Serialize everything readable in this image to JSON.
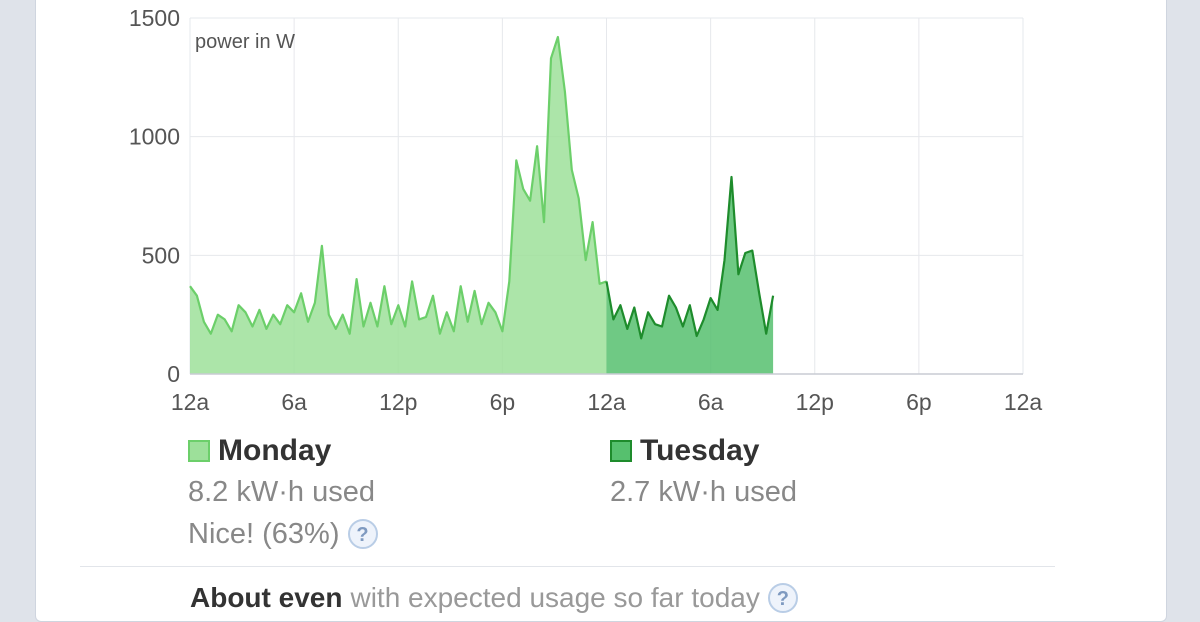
{
  "chart_data": {
    "type": "area",
    "unit_label": "power in W",
    "ylim": [
      0,
      1500
    ],
    "y_ticks": [
      "0",
      "500",
      "1000",
      "1500"
    ],
    "x_ticks": [
      "12a",
      "6a",
      "12p",
      "6p",
      "12a",
      "6a",
      "12p",
      "6p",
      "12a"
    ],
    "x_range_hours": [
      0,
      48
    ],
    "grid": true,
    "series": [
      {
        "name": "Monday",
        "color": "#9de09a",
        "line_color": "#6ccf6a",
        "points": [
          [
            0,
            370
          ],
          [
            0.4,
            330
          ],
          [
            0.8,
            220
          ],
          [
            1.2,
            170
          ],
          [
            1.6,
            250
          ],
          [
            2.0,
            230
          ],
          [
            2.4,
            180
          ],
          [
            2.8,
            290
          ],
          [
            3.2,
            260
          ],
          [
            3.6,
            200
          ],
          [
            4.0,
            270
          ],
          [
            4.4,
            190
          ],
          [
            4.8,
            250
          ],
          [
            5.2,
            210
          ],
          [
            5.6,
            290
          ],
          [
            6.0,
            260
          ],
          [
            6.4,
            340
          ],
          [
            6.8,
            220
          ],
          [
            7.2,
            300
          ],
          [
            7.6,
            540
          ],
          [
            8.0,
            250
          ],
          [
            8.4,
            190
          ],
          [
            8.8,
            250
          ],
          [
            9.2,
            170
          ],
          [
            9.6,
            400
          ],
          [
            10.0,
            200
          ],
          [
            10.4,
            300
          ],
          [
            10.8,
            200
          ],
          [
            11.2,
            370
          ],
          [
            11.6,
            210
          ],
          [
            12.0,
            290
          ],
          [
            12.4,
            200
          ],
          [
            12.8,
            390
          ],
          [
            13.2,
            230
          ],
          [
            13.6,
            240
          ],
          [
            14.0,
            330
          ],
          [
            14.4,
            170
          ],
          [
            14.8,
            260
          ],
          [
            15.2,
            180
          ],
          [
            15.6,
            370
          ],
          [
            16.0,
            220
          ],
          [
            16.4,
            350
          ],
          [
            16.8,
            210
          ],
          [
            17.2,
            300
          ],
          [
            17.6,
            260
          ],
          [
            18.0,
            180
          ],
          [
            18.4,
            390
          ],
          [
            18.8,
            900
          ],
          [
            19.2,
            780
          ],
          [
            19.6,
            730
          ],
          [
            20.0,
            960
          ],
          [
            20.4,
            640
          ],
          [
            20.8,
            1330
          ],
          [
            21.2,
            1420
          ],
          [
            21.6,
            1190
          ],
          [
            22.0,
            860
          ],
          [
            22.4,
            740
          ],
          [
            22.8,
            480
          ],
          [
            23.2,
            640
          ],
          [
            23.6,
            380
          ],
          [
            24.0,
            390
          ]
        ]
      },
      {
        "name": "Tuesday",
        "color": "#56c06e",
        "line_color": "#1e8c2c",
        "points": [
          [
            24.0,
            390
          ],
          [
            24.4,
            230
          ],
          [
            24.8,
            290
          ],
          [
            25.2,
            190
          ],
          [
            25.6,
            280
          ],
          [
            26.0,
            150
          ],
          [
            26.4,
            260
          ],
          [
            26.8,
            210
          ],
          [
            27.2,
            200
          ],
          [
            27.6,
            330
          ],
          [
            28.0,
            280
          ],
          [
            28.4,
            200
          ],
          [
            28.8,
            290
          ],
          [
            29.2,
            160
          ],
          [
            29.6,
            230
          ],
          [
            30.0,
            320
          ],
          [
            30.4,
            270
          ],
          [
            30.8,
            480
          ],
          [
            31.2,
            830
          ],
          [
            31.6,
            420
          ],
          [
            32.0,
            510
          ],
          [
            32.4,
            520
          ],
          [
            32.8,
            340
          ],
          [
            33.2,
            170
          ],
          [
            33.6,
            330
          ]
        ]
      }
    ]
  },
  "legend": {
    "monday": {
      "label": "Monday",
      "usage": "8.2 kW·h used",
      "note": "Nice! (63%)",
      "help": "?"
    },
    "tuesday": {
      "label": "Tuesday",
      "usage": "2.7 kW·h used"
    }
  },
  "about": {
    "bold": "About even",
    "rest": "with expected usage so far today",
    "help": "?"
  }
}
